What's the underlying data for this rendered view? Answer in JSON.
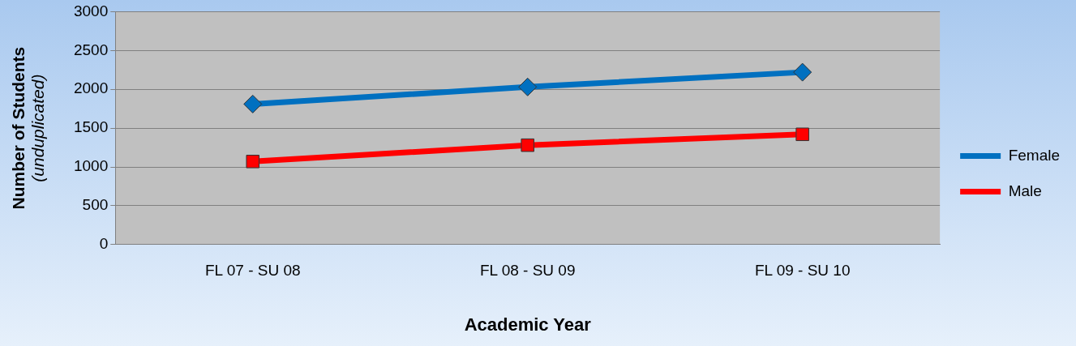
{
  "chart_data": {
    "type": "line",
    "xlabel": "Academic Year",
    "ylabel": "Number of Students\n(unduplicated)",
    "categories": [
      "FL 07 - SU 08",
      "FL 08 - SU 09",
      "FL 09 - SU 10"
    ],
    "series": [
      {
        "name": "Female",
        "color": "#0070c0",
        "marker": "diamond",
        "values": [
          1810,
          2030,
          2220
        ]
      },
      {
        "name": "Male",
        "color": "#ff0000",
        "marker": "square",
        "values": [
          1070,
          1280,
          1420
        ]
      }
    ],
    "ylim": [
      0,
      3000
    ],
    "yticks": [
      0,
      500,
      1000,
      1500,
      2000,
      2500,
      3000
    ],
    "grid": "y",
    "legend": "right",
    "line_style": "solid"
  }
}
